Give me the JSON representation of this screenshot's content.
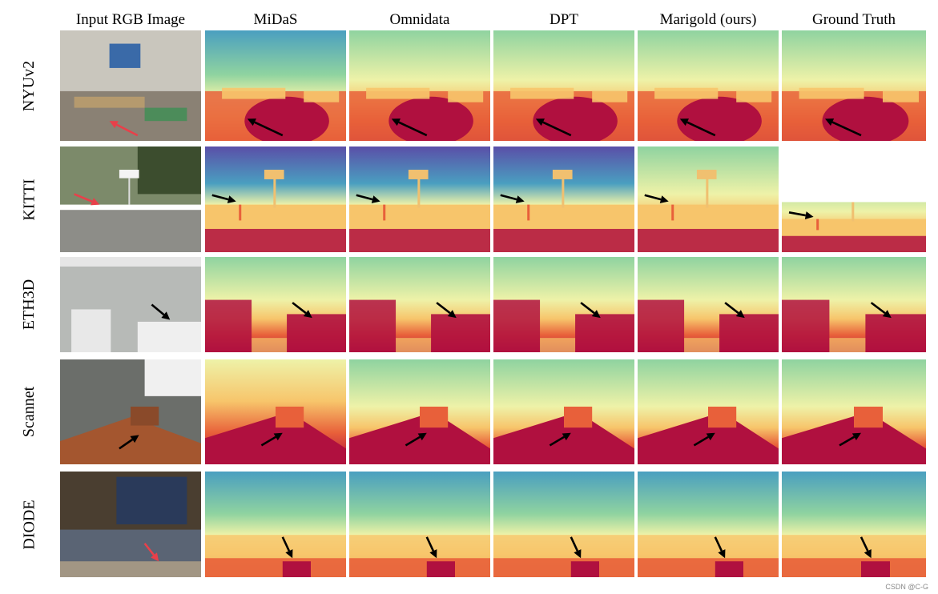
{
  "columns": [
    "Input RGB Image",
    "MiDaS",
    "Omnidata",
    "DPT",
    "Marigold (ours)",
    "Ground Truth"
  ],
  "rows": [
    "NYUv2",
    "KITTI",
    "ETH3D",
    "Scannet",
    "DIODE"
  ],
  "watermark": "CSDN @C-G",
  "colors": {
    "near": "#b0103f",
    "mid_near": "#e8603a",
    "mid": "#f7c56b",
    "mid_far": "#eef2a8",
    "far_green": "#8fd3a0",
    "far_blue": "#4a9fc0",
    "farthest": "#5a4fa8",
    "arrow_black": "#000000",
    "arrow_red": "#e8404a"
  }
}
